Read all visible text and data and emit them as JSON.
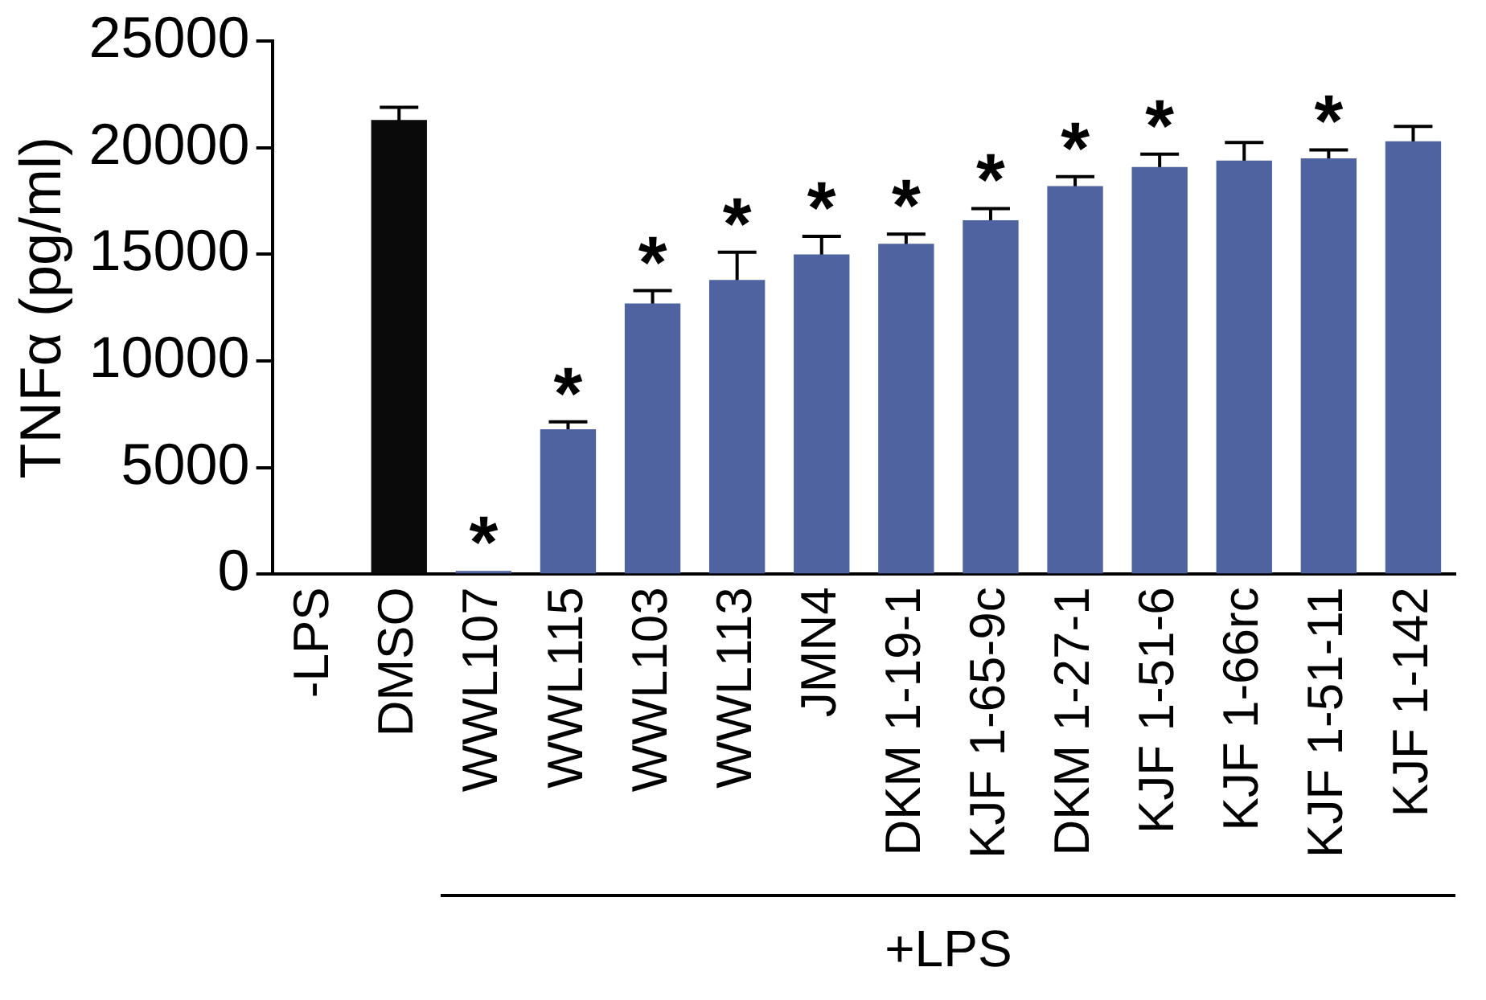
{
  "chart_data": {
    "type": "bar",
    "ylabel": "TNFα (pg/ml)",
    "categories": [
      "-LPS",
      "DMSO",
      "WWL107",
      "WWL115",
      "WWL103",
      "WWL113",
      "JMN4",
      "DKM 1-19-1",
      "KJF 1-65-9c",
      "DKM 1-27-1",
      "KJF 1-51-6",
      "KJF 1-66rc",
      "KJF 1-51-11",
      "KJF 1-142"
    ],
    "values": [
      0,
      21300,
      150,
      6800,
      12700,
      13800,
      15000,
      15500,
      16600,
      18200,
      19100,
      19400,
      19500,
      20300
    ],
    "errors": [
      null,
      600,
      null,
      350,
      600,
      1300,
      850,
      450,
      550,
      450,
      600,
      850,
      400,
      700
    ],
    "value_labels": [
      null,
      null,
      "*",
      "*",
      "*",
      "*",
      "*",
      "*",
      "*",
      "*",
      "*",
      null,
      "*",
      null
    ],
    "colors": [
      "#4f63a0",
      "#0a0a0a",
      "#4f63a0",
      "#4f63a0",
      "#4f63a0",
      "#4f63a0",
      "#4f63a0",
      "#4f63a0",
      "#4f63a0",
      "#4f63a0",
      "#4f63a0",
      "#4f63a0",
      "#4f63a0",
      "#4f63a0"
    ],
    "ylim": [
      0,
      25000
    ],
    "yticks": [
      0,
      5000,
      10000,
      15000,
      20000,
      25000
    ],
    "grid": false,
    "legend": false,
    "annotations": [
      "+LPS"
    ]
  }
}
